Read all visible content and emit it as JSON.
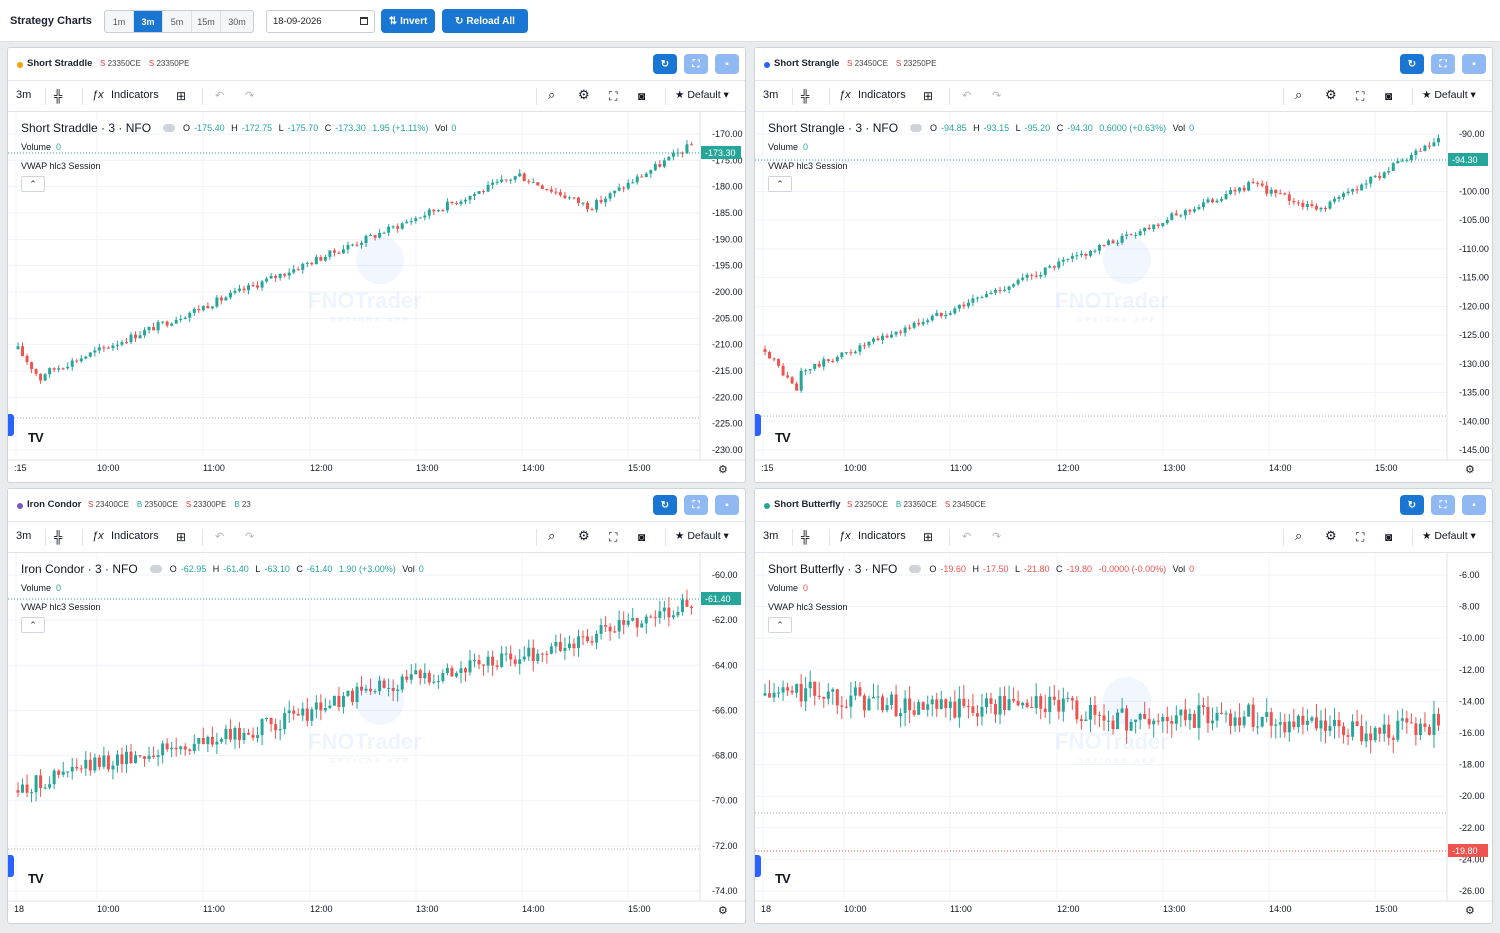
{
  "app": {
    "title": "Strategy Charts",
    "timeframes": [
      {
        "label": "1m",
        "active": false
      },
      {
        "label": "3m",
        "active": true
      },
      {
        "label": "5m",
        "active": false
      },
      {
        "label": "15m",
        "active": false
      },
      {
        "label": "30m",
        "active": false
      }
    ],
    "date": "18-09-2026",
    "invert_label": "Invert",
    "reload_label": "Reload All"
  },
  "toolbar": {
    "interval": "3m",
    "indicators": "Indicators",
    "default": "Default",
    "volume_label": "Volume",
    "vwap_label": "VWAP hlc3 Session",
    "tv_logo": "TV"
  },
  "watermark": {
    "brand": "FNOTrader",
    "sub": "OPTIONS APP"
  },
  "colors": {
    "up": "#26a69a",
    "down": "#ef5350",
    "accent": "#1976d2"
  },
  "panels": [
    {
      "name": "Short Straddle",
      "dot_color": "#f0a30a",
      "legs": [
        {
          "side": "S",
          "text": "23350CE"
        },
        {
          "side": "S",
          "text": "23350PE"
        }
      ],
      "symbol": "Short Straddle · 3 · NFO",
      "ohlc": {
        "o": "-175.40",
        "h": "-172.75",
        "l": "-175.70",
        "c": "-173.30",
        "chg": "1.95 (+1.11%)",
        "vol": "0"
      },
      "change_positive": true,
      "volume": "0",
      "last": "-173.30",
      "y_ticks": [
        "-170.00",
        "-175.00",
        "-180.00",
        "-185.00",
        "-190.00",
        "-195.00",
        "-200.00",
        "-205.00",
        "-210.00",
        "-215.00",
        "-220.00",
        "-225.00",
        "-230.00"
      ],
      "x_ticks": [
        ":15",
        "10:00",
        "11:00",
        "12:00",
        "13:00",
        "14:00",
        "15:00"
      ]
    },
    {
      "name": "Short Strangle",
      "dot_color": "#2962ff",
      "legs": [
        {
          "side": "S",
          "text": "23450CE"
        },
        {
          "side": "S",
          "text": "23250PE"
        }
      ],
      "symbol": "Short Strangle · 3 · NFO",
      "ohlc": {
        "o": "-94.85",
        "h": "-93.15",
        "l": "-95.20",
        "c": "-94.30",
        "chg": "0.6000 (+0.63%)",
        "vol": "0"
      },
      "change_positive": true,
      "volume": "0",
      "last": "-94.30",
      "y_ticks": [
        "-90.00",
        "-95.00",
        "-100.00",
        "-105.00",
        "-110.00",
        "-115.00",
        "-120.00",
        "-125.00",
        "-130.00",
        "-135.00",
        "-140.00",
        "-145.00"
      ],
      "x_ticks": [
        ":15",
        "10:00",
        "11:00",
        "12:00",
        "13:00",
        "14:00",
        "15:00"
      ]
    },
    {
      "name": "Iron Condor",
      "dot_color": "#7e57c2",
      "legs": [
        {
          "side": "S",
          "text": "23400CE"
        },
        {
          "side": "B",
          "text": "23500CE"
        },
        {
          "side": "S",
          "text": "23300PE"
        },
        {
          "side": "B",
          "text": "23"
        }
      ],
      "symbol": "Iron Condor · 3 · NFO",
      "ohlc": {
        "o": "-62.95",
        "h": "-61.40",
        "l": "-63.10",
        "c": "-61.40",
        "chg": "1.90 (+3.00%)",
        "vol": "0"
      },
      "change_positive": true,
      "volume": "0",
      "last": "-61.40",
      "y_ticks": [
        "-60.00",
        "-62.00",
        "-64.00",
        "-66.00",
        "-68.00",
        "-70.00",
        "-72.00",
        "-74.00"
      ],
      "x_ticks": [
        "18",
        "10:00",
        "11:00",
        "12:00",
        "13:00",
        "14:00",
        "15:00"
      ]
    },
    {
      "name": "Short Butterfly",
      "dot_color": "#26a69a",
      "legs": [
        {
          "side": "S",
          "text": "23250CE"
        },
        {
          "side": "B",
          "text": "23350CE"
        },
        {
          "side": "S",
          "text": "23450CE"
        }
      ],
      "symbol": "Short Butterfly · 3 · NFO",
      "ohlc": {
        "o": "-19.60",
        "h": "-17.50",
        "l": "-21.80",
        "c": "-19.80",
        "chg": "-0.0000 (-0.00%)",
        "vol": "0"
      },
      "change_positive": false,
      "volume": "0",
      "last": "-19.80",
      "y_ticks": [
        "-6.00",
        "-8.00",
        "-10.00",
        "-12.00",
        "-14.00",
        "-16.00",
        "-18.00",
        "-20.00",
        "-22.00",
        "-24.00",
        "-26.00"
      ],
      "x_ticks": [
        "18",
        "10:00",
        "11:00",
        "12:00",
        "13:00",
        "14:00",
        "15:00"
      ]
    }
  ]
}
